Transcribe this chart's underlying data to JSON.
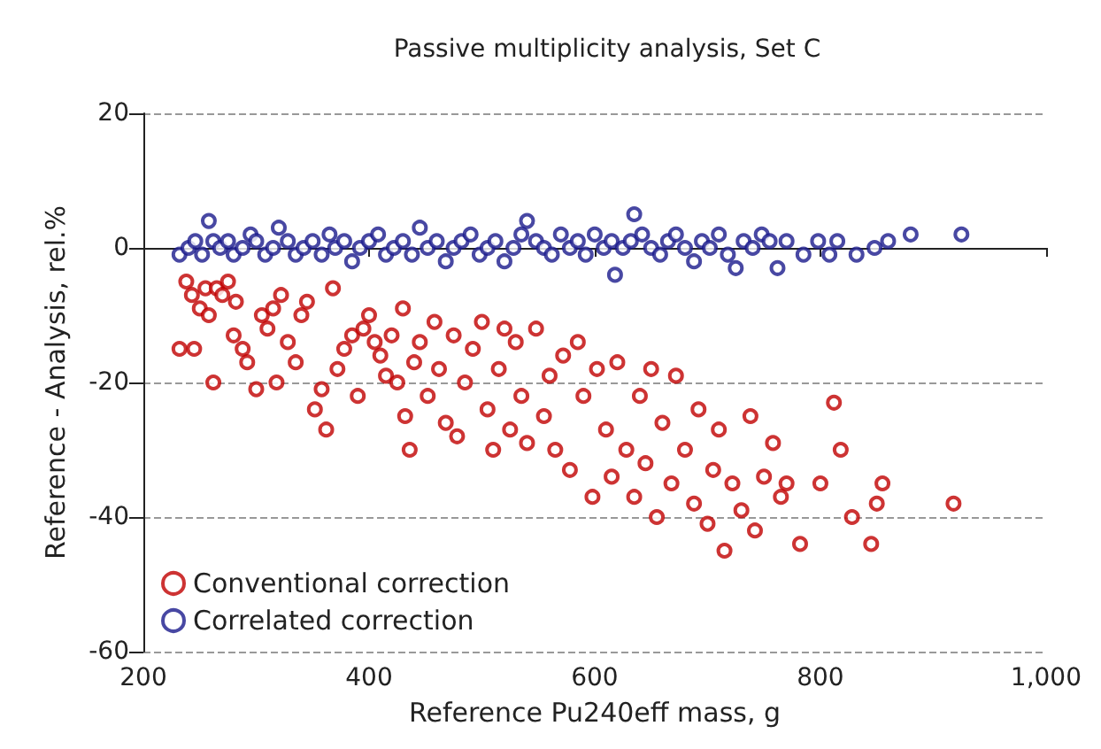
{
  "chart_data": {
    "type": "scatter",
    "title": "Passive multiplicity analysis, Set C",
    "xlabel": "Reference Pu240eff mass, g",
    "ylabel": "Reference - Analysis, rel.%",
    "xlim": [
      200,
      1000
    ],
    "xticks": [
      200,
      400,
      600,
      800,
      {
        "value": 1000,
        "label": "1,000"
      }
    ],
    "ylim": [
      -60,
      20
    ],
    "yticks": [
      -60,
      -40,
      -20,
      0,
      20
    ],
    "grid": "y",
    "legend": "bottom left",
    "marker": "circle",
    "series": [
      {
        "name": "Conventional correction",
        "color": "#c00000",
        "x": [
          232,
          238,
          243,
          245,
          250,
          255,
          258,
          262,
          265,
          270,
          275,
          280,
          282,
          288,
          292,
          300,
          305,
          310,
          315,
          318,
          322,
          328,
          335,
          340,
          345,
          352,
          358,
          362,
          368,
          372,
          378,
          385,
          390,
          395,
          400,
          405,
          410,
          415,
          420,
          425,
          430,
          432,
          436,
          440,
          445,
          452,
          458,
          462,
          468,
          475,
          478,
          485,
          492,
          500,
          505,
          510,
          515,
          520,
          525,
          530,
          535,
          540,
          548,
          555,
          560,
          565,
          572,
          578,
          585,
          590,
          598,
          602,
          610,
          615,
          620,
          628,
          635,
          640,
          645,
          650,
          655,
          660,
          668,
          672,
          680,
          688,
          692,
          700,
          705,
          710,
          715,
          722,
          730,
          738,
          742,
          750,
          758,
          765,
          770,
          782,
          800,
          812,
          818,
          828,
          845,
          850,
          855,
          918
        ],
        "values": [
          -15,
          -5,
          -7,
          -15,
          -9,
          -6,
          -10,
          -20,
          -6,
          -7,
          -5,
          -13,
          -8,
          -15,
          -17,
          -21,
          -10,
          -12,
          -9,
          -20,
          -7,
          -14,
          -17,
          -10,
          -8,
          -24,
          -21,
          -27,
          -6,
          -18,
          -15,
          -13,
          -22,
          -12,
          -10,
          -14,
          -16,
          -19,
          -13,
          -20,
          -9,
          -25,
          -30,
          -17,
          -14,
          -22,
          -11,
          -18,
          -26,
          -13,
          -28,
          -20,
          -15,
          -11,
          -24,
          -30,
          -18,
          -12,
          -27,
          -14,
          -22,
          -29,
          -12,
          -25,
          -19,
          -30,
          -16,
          -33,
          -14,
          -22,
          -37,
          -18,
          -27,
          -34,
          -17,
          -30,
          -37,
          -22,
          -32,
          -18,
          -40,
          -26,
          -35,
          -19,
          -30,
          -38,
          -24,
          -41,
          -33,
          -27,
          -45,
          -35,
          -39,
          -25,
          -42,
          -34,
          -29,
          -37,
          -35,
          -44,
          -35,
          -23,
          -30,
          -40,
          -44,
          -38,
          -35,
          -38
        ]
      },
      {
        "name": "Correlated correction",
        "color": "#1a1a8c",
        "x": [
          232,
          240,
          246,
          252,
          258,
          262,
          268,
          275,
          280,
          288,
          295,
          300,
          308,
          315,
          320,
          328,
          335,
          342,
          350,
          358,
          365,
          370,
          378,
          385,
          392,
          400,
          408,
          415,
          422,
          430,
          438,
          445,
          452,
          460,
          468,
          475,
          482,
          490,
          498,
          505,
          512,
          520,
          528,
          535,
          540,
          548,
          555,
          562,
          570,
          578,
          585,
          592,
          600,
          608,
          615,
          618,
          625,
          632,
          635,
          642,
          650,
          658,
          665,
          672,
          680,
          688,
          695,
          702,
          710,
          718,
          725,
          732,
          740,
          748,
          755,
          762,
          770,
          785,
          798,
          808,
          815,
          832,
          848,
          860,
          880,
          925
        ],
        "values": [
          -1,
          0,
          1,
          -1,
          4,
          1,
          0,
          1,
          -1,
          0,
          2,
          1,
          -1,
          0,
          3,
          1,
          -1,
          0,
          1,
          -1,
          2,
          0,
          1,
          -2,
          0,
          1,
          2,
          -1,
          0,
          1,
          -1,
          3,
          0,
          1,
          -2,
          0,
          1,
          2,
          -1,
          0,
          1,
          -2,
          0,
          2,
          4,
          1,
          0,
          -1,
          2,
          0,
          1,
          -1,
          2,
          0,
          1,
          -4,
          0,
          1,
          5,
          2,
          0,
          -1,
          1,
          2,
          0,
          -2,
          1,
          0,
          2,
          -1,
          -3,
          1,
          0,
          2,
          1,
          -3,
          1,
          -1,
          1,
          -1,
          1,
          -1,
          0,
          1,
          2,
          2
        ]
      }
    ]
  }
}
